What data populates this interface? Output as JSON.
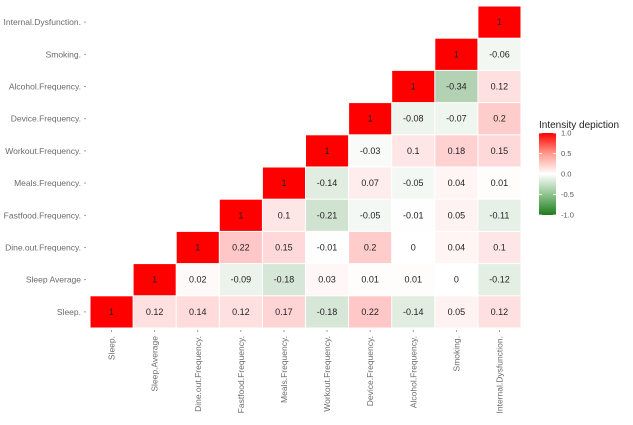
{
  "chart_data": {
    "type": "heatmap",
    "title": "",
    "xlabel": "",
    "ylabel": "",
    "grid": false,
    "legend_placement": "right",
    "variables": [
      "Sleep.",
      "Sleep Average",
      "Dine.out.Frequency.",
      "Fastfood.Frequency.",
      "Meals.Frequency.",
      "Workout.Frequency.",
      "Device.Frequency.",
      "Alcohol.Frequency.",
      "Smoking.",
      "Internal.Dysfunction."
    ],
    "x_tick_labels": [
      "Sleep.",
      "Sleep.Average",
      "Dine.out.Frequency.",
      "Fastfood.Frequency.",
      "Meals.Frequency.",
      "Workout.Frequency.",
      "Device.Frequency.",
      "Alcohol.Frequency.",
      "Smoking.",
      "Internal.Dysfunction."
    ],
    "y_tick_labels": [
      "Sleep.",
      "Sleep Average",
      "Dine.out.Frequency.",
      "Fastfood.Frequency.",
      "Meals.Frequency.",
      "Workout.Frequency.",
      "Device.Frequency.",
      "Alcohol.Frequency.",
      "Smoking.",
      "Internal.Dysfunction."
    ],
    "cells": [
      {
        "col": 0,
        "row": 0,
        "value": 1,
        "label": "1"
      },
      {
        "col": 1,
        "row": 0,
        "value": 0.12,
        "label": "0.12"
      },
      {
        "col": 2,
        "row": 0,
        "value": 0.14,
        "label": "0.14"
      },
      {
        "col": 3,
        "row": 0,
        "value": 0.12,
        "label": "0.12"
      },
      {
        "col": 4,
        "row": 0,
        "value": 0.17,
        "label": "0.17"
      },
      {
        "col": 5,
        "row": 0,
        "value": -0.18,
        "label": "-0.18"
      },
      {
        "col": 6,
        "row": 0,
        "value": 0.22,
        "label": "0.22"
      },
      {
        "col": 7,
        "row": 0,
        "value": -0.14,
        "label": "-0.14"
      },
      {
        "col": 8,
        "row": 0,
        "value": 0.05,
        "label": "0.05"
      },
      {
        "col": 9,
        "row": 0,
        "value": 0.12,
        "label": "0.12"
      },
      {
        "col": 1,
        "row": 1,
        "value": 1,
        "label": "1"
      },
      {
        "col": 2,
        "row": 1,
        "value": 0.02,
        "label": "0.02"
      },
      {
        "col": 3,
        "row": 1,
        "value": -0.09,
        "label": "-0.09"
      },
      {
        "col": 4,
        "row": 1,
        "value": -0.18,
        "label": "-0.18"
      },
      {
        "col": 5,
        "row": 1,
        "value": 0.03,
        "label": "0.03"
      },
      {
        "col": 6,
        "row": 1,
        "value": 0.01,
        "label": "0.01"
      },
      {
        "col": 7,
        "row": 1,
        "value": 0.01,
        "label": "0.01"
      },
      {
        "col": 8,
        "row": 1,
        "value": 0,
        "label": "0"
      },
      {
        "col": 9,
        "row": 1,
        "value": -0.12,
        "label": "-0.12"
      },
      {
        "col": 2,
        "row": 2,
        "value": 1,
        "label": "1"
      },
      {
        "col": 3,
        "row": 2,
        "value": 0.22,
        "label": "0.22"
      },
      {
        "col": 4,
        "row": 2,
        "value": 0.15,
        "label": "0.15"
      },
      {
        "col": 5,
        "row": 2,
        "value": -0.01,
        "label": "-0.01"
      },
      {
        "col": 6,
        "row": 2,
        "value": 0.2,
        "label": "0.2"
      },
      {
        "col": 7,
        "row": 2,
        "value": 0,
        "label": "0"
      },
      {
        "col": 8,
        "row": 2,
        "value": 0.04,
        "label": "0.04"
      },
      {
        "col": 9,
        "row": 2,
        "value": 0.1,
        "label": "0.1"
      },
      {
        "col": 3,
        "row": 3,
        "value": 1,
        "label": "1"
      },
      {
        "col": 4,
        "row": 3,
        "value": 0.1,
        "label": "0.1"
      },
      {
        "col": 5,
        "row": 3,
        "value": -0.21,
        "label": "-0.21"
      },
      {
        "col": 6,
        "row": 3,
        "value": -0.05,
        "label": "-0.05"
      },
      {
        "col": 7,
        "row": 3,
        "value": -0.01,
        "label": "-0.01"
      },
      {
        "col": 8,
        "row": 3,
        "value": 0.05,
        "label": "0.05"
      },
      {
        "col": 9,
        "row": 3,
        "value": -0.11,
        "label": "-0.11"
      },
      {
        "col": 4,
        "row": 4,
        "value": 1,
        "label": "1"
      },
      {
        "col": 5,
        "row": 4,
        "value": -0.14,
        "label": "-0.14"
      },
      {
        "col": 6,
        "row": 4,
        "value": 0.07,
        "label": "0.07"
      },
      {
        "col": 7,
        "row": 4,
        "value": -0.05,
        "label": "-0.05"
      },
      {
        "col": 8,
        "row": 4,
        "value": 0.04,
        "label": "0.04"
      },
      {
        "col": 9,
        "row": 4,
        "value": 0.01,
        "label": "0.01"
      },
      {
        "col": 5,
        "row": 5,
        "value": 1,
        "label": "1"
      },
      {
        "col": 6,
        "row": 5,
        "value": -0.03,
        "label": "-0.03"
      },
      {
        "col": 7,
        "row": 5,
        "value": 0.1,
        "label": "0.1"
      },
      {
        "col": 8,
        "row": 5,
        "value": 0.18,
        "label": "0.18"
      },
      {
        "col": 9,
        "row": 5,
        "value": 0.15,
        "label": "0.15"
      },
      {
        "col": 6,
        "row": 6,
        "value": 1,
        "label": "1"
      },
      {
        "col": 7,
        "row": 6,
        "value": -0.08,
        "label": "-0.08"
      },
      {
        "col": 8,
        "row": 6,
        "value": -0.07,
        "label": "-0.07"
      },
      {
        "col": 9,
        "row": 6,
        "value": 0.2,
        "label": "0.2"
      },
      {
        "col": 7,
        "row": 7,
        "value": 1,
        "label": "1"
      },
      {
        "col": 8,
        "row": 7,
        "value": -0.34,
        "label": "-0.34"
      },
      {
        "col": 9,
        "row": 7,
        "value": 0.12,
        "label": "0.12"
      },
      {
        "col": 8,
        "row": 8,
        "value": 1,
        "label": "1"
      },
      {
        "col": 9,
        "row": 8,
        "value": -0.06,
        "label": "-0.06"
      },
      {
        "col": 9,
        "row": 9,
        "value": 1,
        "label": "1"
      }
    ],
    "legend": {
      "title": "Intensity depiction",
      "ticks": [
        "1.0",
        "0.5",
        "0.0",
        "-0.5",
        "-1.0"
      ],
      "tick_values": [
        1.0,
        0.5,
        0.0,
        -0.5,
        -1.0
      ],
      "range": [
        -1.0,
        1.0
      ],
      "colors": {
        "high": "#ff0000",
        "mid": "#ffffff",
        "low": "#1e7b1e"
      }
    }
  }
}
